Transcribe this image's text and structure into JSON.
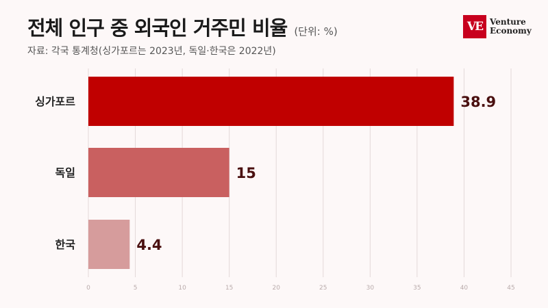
{
  "header": {
    "title": "전체 인구 중 외국인 거주민 비율",
    "unit": "(단위: %)",
    "source": "자료: 각국 통계청(싱가포르는 2023년, 독일·한국은 2022년)"
  },
  "logo": {
    "mark": "VE",
    "line1": "Venture",
    "line2": "Economy"
  },
  "chart_data": {
    "type": "bar",
    "orientation": "horizontal",
    "categories": [
      "싱가포르",
      "독일",
      "한국"
    ],
    "values": [
      38.9,
      15,
      4.4
    ],
    "value_labels": [
      "38.9",
      "15",
      "4.4"
    ],
    "colors": [
      "#c00000",
      "#c96060",
      "#d69c9c"
    ],
    "xlim": [
      0,
      45
    ],
    "xticks": [
      0,
      5,
      10,
      15,
      20,
      25,
      30,
      35,
      40,
      45
    ],
    "grid": true
  }
}
